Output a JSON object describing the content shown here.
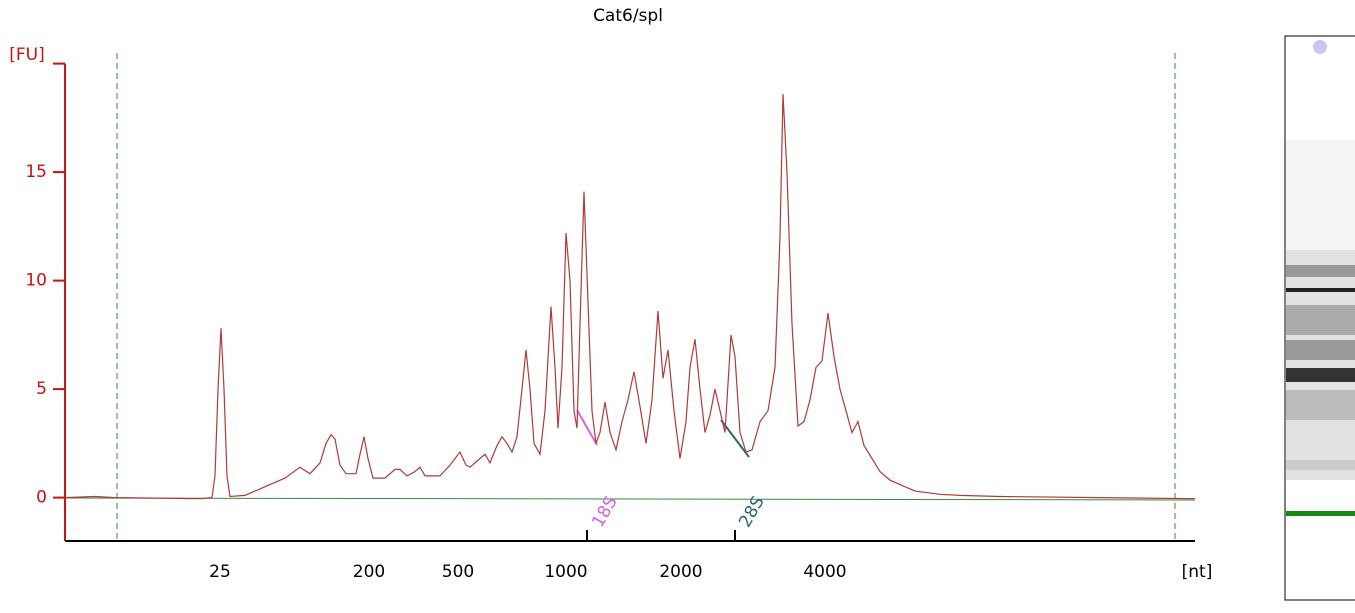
{
  "chart_data": {
    "type": "line",
    "title": "Cat6/spl",
    "y_label": "[FU]",
    "x_label": "[nt]",
    "annotations": [
      "18S",
      "28S"
    ],
    "series": [
      {
        "color": "#b03a3a",
        "x": [
          0,
          30,
          50,
          135,
          147,
          150,
          153,
          156,
          159,
          162,
          165,
          180,
          195,
          205,
          220,
          235,
          245,
          255,
          261,
          266,
          270,
          275,
          281,
          291,
          295,
          299,
          303,
          308,
          320,
          330,
          335,
          342,
          350,
          355,
          360,
          375,
          385,
          395,
          401,
          405,
          415,
          420,
          425,
          432,
          437,
          442,
          447,
          452,
          457,
          461,
          465,
          469,
          475,
          480,
          486,
          490,
          493,
          497,
          501,
          505,
          509,
          512,
          515,
          519,
          523,
          527,
          531,
          535,
          540,
          545,
          551,
          557,
          563,
          569,
          575,
          581,
          587,
          593,
          598,
          603,
          609,
          615,
          621,
          625,
          630,
          635,
          640,
          645,
          650,
          655,
          660,
          666,
          670,
          675,
          681,
          687,
          695,
          703,
          710,
          715,
          718,
          722,
          727,
          733,
          739,
          745,
          751,
          757,
          763,
          769,
          775,
          781,
          787,
          793,
          799,
          807,
          815,
          825,
          835,
          850,
          875,
          895,
          935,
          1035,
          1130
        ],
        "values": [
          0,
          0.05,
          0,
          -0.05,
          0,
          1,
          5,
          7.8,
          5,
          1,
          0.05,
          0.1,
          0.4,
          0.6,
          0.9,
          1.4,
          1.1,
          1.6,
          2.5,
          2.9,
          2.7,
          1.5,
          1.1,
          1.1,
          2.0,
          2.8,
          1.8,
          0.9,
          0.9,
          1.3,
          1.3,
          1.0,
          1.2,
          1.4,
          1.0,
          1.0,
          1.5,
          2.1,
          1.5,
          1.4,
          1.8,
          2.0,
          1.6,
          2.4,
          2.8,
          2.5,
          2.1,
          2.8,
          5.0,
          6.8,
          5.0,
          2.5,
          2.0,
          4.0,
          8.8,
          6.0,
          3.2,
          6.0,
          12.2,
          10.0,
          4.0,
          3.2,
          8.0,
          14.1,
          9.0,
          4.0,
          2.5,
          3.0,
          4.4,
          3.0,
          2.2,
          3.5,
          4.5,
          5.8,
          4.2,
          2.5,
          4.5,
          8.6,
          5.5,
          6.8,
          4.0,
          1.8,
          3.5,
          6.0,
          7.3,
          5.0,
          3.0,
          3.8,
          5.0,
          4.0,
          3.0,
          7.5,
          6.5,
          3.0,
          2.1,
          2.2,
          3.5,
          4.0,
          6.0,
          12.0,
          18.6,
          15.0,
          8.0,
          3.3,
          3.5,
          4.5,
          6.0,
          6.3,
          8.5,
          6.5,
          5.0,
          4.0,
          3.0,
          3.5,
          2.4,
          1.8,
          1.2,
          0.8,
          0.6,
          0.3,
          0.15,
          0.1,
          0.05,
          0,
          -0.05
        ]
      }
    ],
    "xlim": [
      0,
      1130
    ],
    "ylim": [
      -2,
      20
    ],
    "xticks": [
      {
        "value": 155,
        "label": "25"
      },
      {
        "value": 304,
        "label": "200"
      },
      {
        "value": 393,
        "label": "500"
      },
      {
        "value": 501,
        "label": "1000"
      },
      {
        "value": 616,
        "label": "2000"
      },
      {
        "value": 760,
        "label": "4000"
      }
    ],
    "yticks": [
      0,
      5,
      10,
      15
    ],
    "y_axis_color": "#cc1111"
  }
}
